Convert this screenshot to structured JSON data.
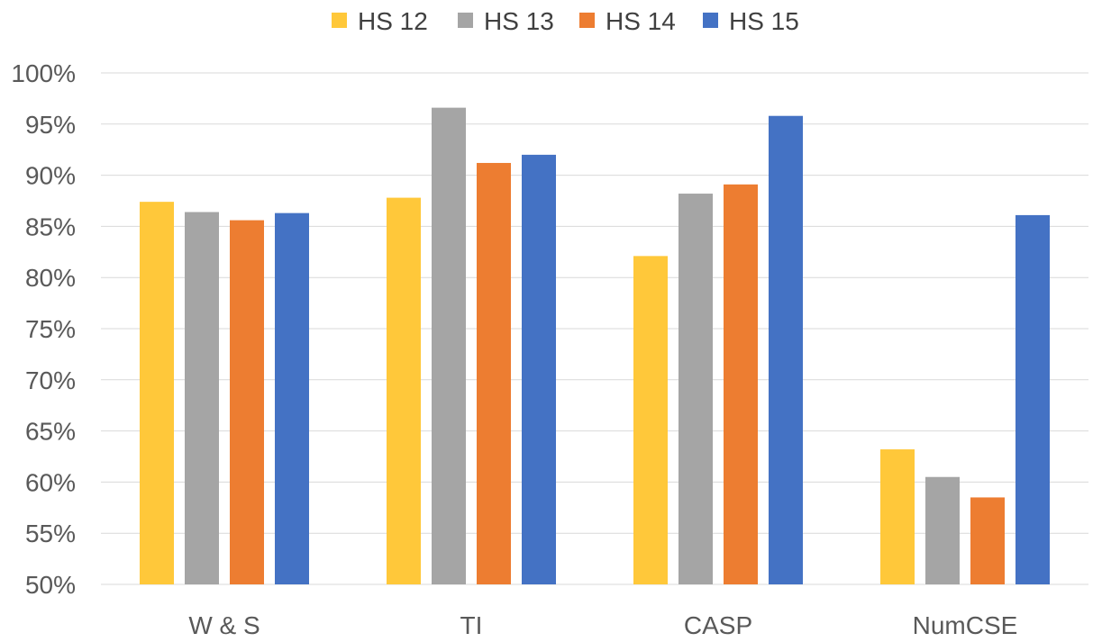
{
  "chart_data": {
    "type": "bar",
    "title": "",
    "xlabel": "",
    "ylabel": "",
    "categories": [
      "W & S",
      "TI",
      "CASP",
      "NumCSE"
    ],
    "series": [
      {
        "name": "HS 12",
        "color": "#FFC83A",
        "values": [
          87.4,
          87.8,
          82.1,
          63.2
        ]
      },
      {
        "name": "HS 13",
        "color": "#A5A5A5",
        "values": [
          86.4,
          96.6,
          88.2,
          60.5
        ]
      },
      {
        "name": "HS 14",
        "color": "#ED7D31",
        "values": [
          85.6,
          91.2,
          89.1,
          58.5
        ]
      },
      {
        "name": "HS 15",
        "color": "#4472C4",
        "values": [
          86.3,
          92.0,
          95.8,
          86.1
        ]
      }
    ],
    "ylim": [
      50,
      100
    ],
    "y_ticks": [
      50,
      55,
      60,
      65,
      70,
      75,
      80,
      85,
      90,
      95,
      100
    ],
    "y_tick_labels": [
      "50%",
      "55%",
      "60%",
      "65%",
      "70%",
      "75%",
      "80%",
      "85%",
      "90%",
      "95%",
      "100%"
    ],
    "grid": true,
    "legend_position": "top-center"
  }
}
